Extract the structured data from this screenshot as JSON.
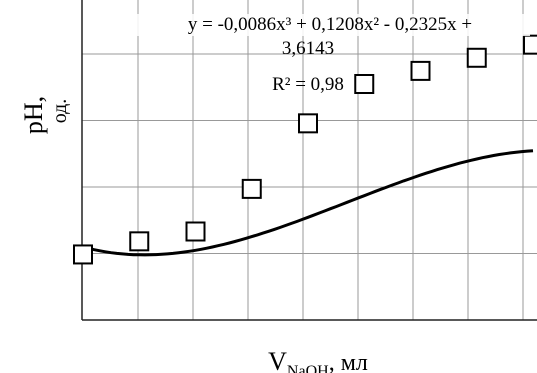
{
  "chart_data": {
    "type": "scatter",
    "title": "",
    "xlabel_main": "V",
    "xlabel_sub": "NaOH",
    "xlabel_unit": ", мл",
    "ylabel_main": "pH,",
    "ylabel_unit": "од.",
    "equation_line1": "y = -0,0086x³ + 0,1208x² - 0,2325x +",
    "equation_line2": "3,6143",
    "r_squared": "R² = 0,98",
    "x": [
      0,
      1,
      2,
      3,
      4,
      5,
      6,
      7,
      8
    ],
    "y": [
      3.5,
      3.7,
      3.85,
      4.5,
      5.5,
      6.1,
      6.3,
      6.5,
      6.7
    ],
    "trendline": {
      "a3": -0.0086,
      "a2": 0.1208,
      "a1": -0.2325,
      "a0": 3.6143
    },
    "xlim": [
      0,
      8
    ],
    "ylim": [
      2.5,
      7
    ],
    "grid": true,
    "marker": "square",
    "colors": {
      "line": "#000000",
      "grid": "#999999",
      "marker_fill": "#ffffff"
    }
  }
}
